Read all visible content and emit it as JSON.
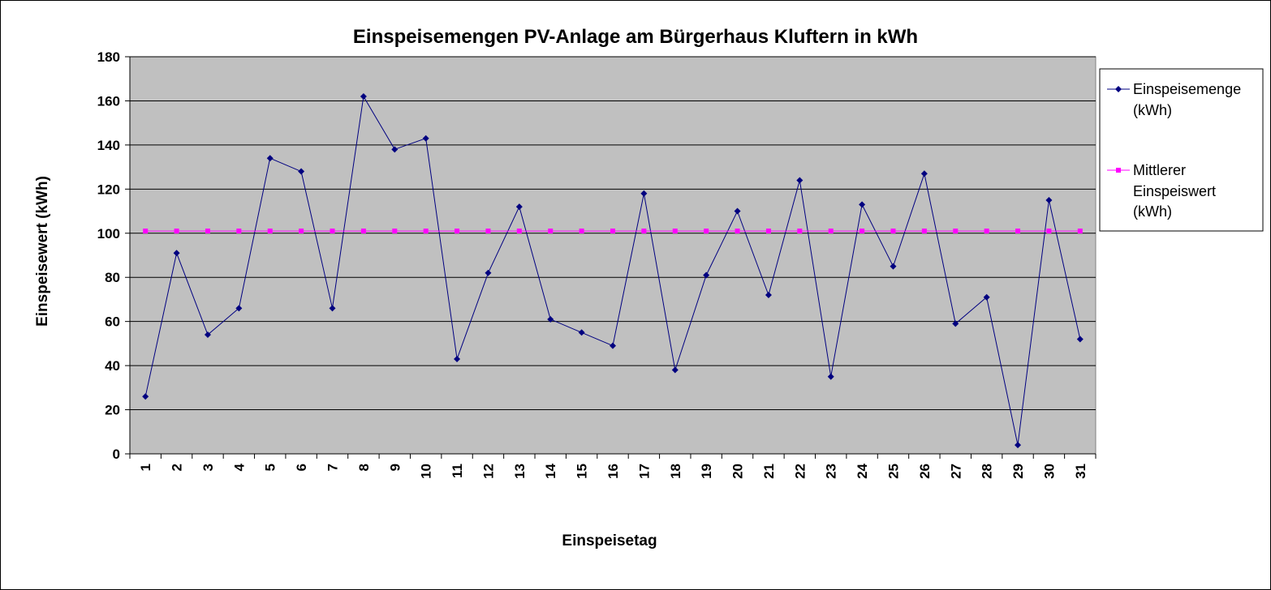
{
  "chart_data": {
    "type": "line",
    "title": "Einspeisemengen PV-Anlage am Bürgerhaus Kluftern in kWh",
    "xlabel": "Einspeisetag",
    "ylabel": "Einspeisewert (kWh)",
    "ylim": [
      0,
      180
    ],
    "yticks": [
      "0",
      "20",
      "40",
      "60",
      "80",
      "100",
      "120",
      "140",
      "160",
      "180"
    ],
    "categories": [
      "1",
      "2",
      "3",
      "4",
      "5",
      "6",
      "7",
      "8",
      "9",
      "10",
      "11",
      "12",
      "13",
      "14",
      "15",
      "16",
      "17",
      "18",
      "19",
      "20",
      "21",
      "22",
      "23",
      "24",
      "25",
      "26",
      "27",
      "28",
      "29",
      "30",
      "31"
    ],
    "grid": "horizontal",
    "legend_position": "right",
    "plot_background": "#c0c0c0",
    "series": [
      {
        "name_lines": [
          "Einspeisemenge",
          "(kWh)"
        ],
        "color": "#000080",
        "marker": "diamond",
        "values": [
          26,
          91,
          54,
          66,
          134,
          128,
          66,
          162,
          138,
          143,
          43,
          82,
          112,
          61,
          55,
          49,
          118,
          38,
          81,
          110,
          72,
          124,
          35,
          113,
          85,
          127,
          59,
          71,
          4,
          115,
          52
        ]
      },
      {
        "name_lines": [
          "Mittlerer",
          "Einspeiswert",
          "(kWh)"
        ],
        "color": "#ff00ff",
        "marker": "square",
        "values": [
          101,
          101,
          101,
          101,
          101,
          101,
          101,
          101,
          101,
          101,
          101,
          101,
          101,
          101,
          101,
          101,
          101,
          101,
          101,
          101,
          101,
          101,
          101,
          101,
          101,
          101,
          101,
          101,
          101,
          101,
          101
        ]
      }
    ]
  }
}
